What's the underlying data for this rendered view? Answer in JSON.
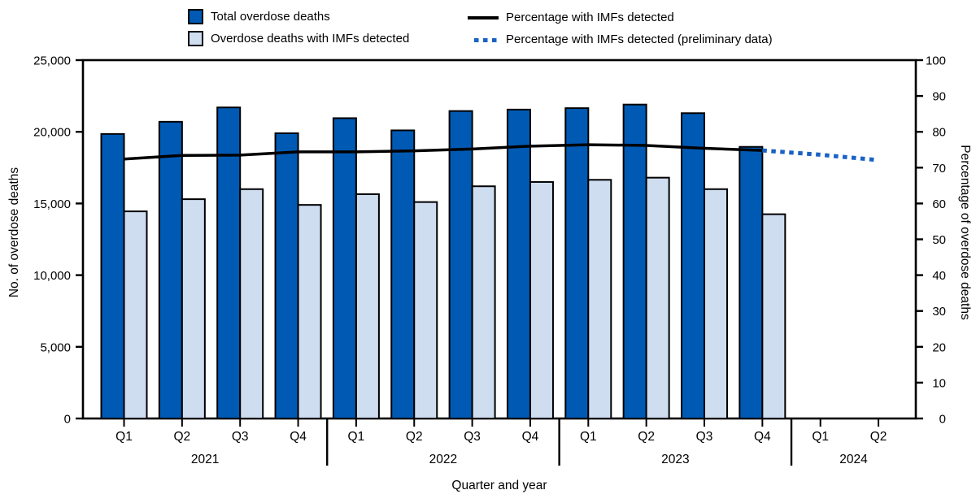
{
  "legend": {
    "position": "top",
    "items": [
      {
        "label": "Total overdose deaths",
        "swatch": "dark-bar-swatch"
      },
      {
        "label": "Overdose deaths with IMFs detected",
        "swatch": "light-bar-swatch"
      },
      {
        "label": "Percentage with IMFs detected",
        "swatch": "solid-line-swatch"
      },
      {
        "label": "Percentage with IMFs detected (preliminary data)",
        "swatch": "dotted-line-swatch"
      }
    ]
  },
  "colors": {
    "total_bar": "#005AB4",
    "imf_bar": "#CFDDF1",
    "pct_line": "#000000",
    "pct_line_preliminary": "#1A62C4",
    "bar_outline": "#000000",
    "axis": "#000000"
  },
  "chart_data": {
    "type": "bar",
    "title": "",
    "x_label": "Quarter and year",
    "legend_position": "top",
    "grid": "off",
    "years": [
      {
        "year": "2021",
        "quarters": [
          "Q1",
          "Q2",
          "Q3",
          "Q4"
        ]
      },
      {
        "year": "2022",
        "quarters": [
          "Q1",
          "Q2",
          "Q3",
          "Q4"
        ]
      },
      {
        "year": "2023",
        "quarters": [
          "Q1",
          "Q2",
          "Q3",
          "Q4"
        ]
      },
      {
        "year": "2024",
        "quarters": [
          "Q1",
          "Q2"
        ]
      }
    ],
    "left_axis": {
      "label": "No. of overdose deaths",
      "min": 0,
      "max": 25000,
      "tick_step": 5000,
      "tick_labels": [
        "0",
        "5,000",
        "10,000",
        "15,000",
        "20,000",
        "25,000"
      ]
    },
    "right_axis": {
      "label": "Percentage of overdose deaths",
      "min": 0,
      "max": 100,
      "tick_step": 10,
      "tick_labels": [
        "0",
        "10",
        "20",
        "30",
        "40",
        "50",
        "60",
        "70",
        "80",
        "90",
        "100"
      ]
    },
    "series": [
      {
        "name": "Total overdose deaths",
        "type": "bar",
        "axis": "left",
        "values": [
          19850,
          20700,
          21700,
          19900,
          20950,
          20100,
          21450,
          21550,
          21650,
          21900,
          21300,
          18950
        ]
      },
      {
        "name": "Overdose deaths with IMFs detected",
        "type": "bar",
        "axis": "left",
        "values": [
          14450,
          15300,
          16000,
          14900,
          15650,
          15100,
          16200,
          16500,
          16650,
          16800,
          16000,
          14250
        ]
      },
      {
        "name": "Percentage with IMFs detected",
        "type": "line",
        "axis": "right",
        "values": [
          72.4,
          73.4,
          73.5,
          74.4,
          74.4,
          74.7,
          75.2,
          76.0,
          76.4,
          76.2,
          75.4,
          74.8
        ]
      },
      {
        "name": "Percentage with IMFs detected (preliminary data)",
        "type": "line-dotted",
        "axis": "right",
        "start_index": 11,
        "values": [
          74.8,
          73.6,
          72.2
        ]
      }
    ]
  }
}
